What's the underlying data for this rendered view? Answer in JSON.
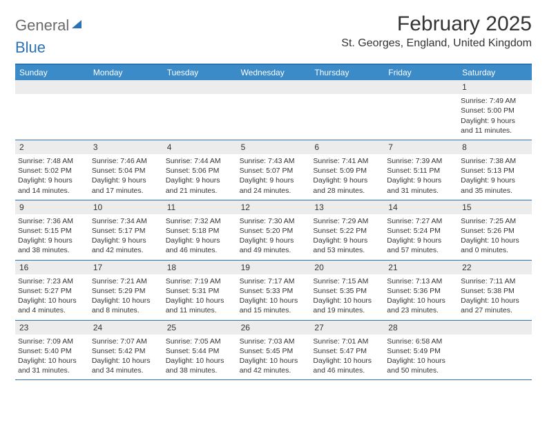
{
  "logo": {
    "word1": "General",
    "word2": "Blue"
  },
  "title": "February 2025",
  "location": "St. Georges, England, United Kingdom",
  "colors": {
    "header_bg": "#3b8bc9",
    "border": "#2a72b5",
    "numrow_bg": "#ececec",
    "text": "#333333",
    "logo_gray": "#6a6a6a"
  },
  "daynames": [
    "Sunday",
    "Monday",
    "Tuesday",
    "Wednesday",
    "Thursday",
    "Friday",
    "Saturday"
  ],
  "weeks": [
    [
      {
        "n": "",
        "sunrise": "",
        "sunset": "",
        "daylight1": "",
        "daylight2": ""
      },
      {
        "n": "",
        "sunrise": "",
        "sunset": "",
        "daylight1": "",
        "daylight2": ""
      },
      {
        "n": "",
        "sunrise": "",
        "sunset": "",
        "daylight1": "",
        "daylight2": ""
      },
      {
        "n": "",
        "sunrise": "",
        "sunset": "",
        "daylight1": "",
        "daylight2": ""
      },
      {
        "n": "",
        "sunrise": "",
        "sunset": "",
        "daylight1": "",
        "daylight2": ""
      },
      {
        "n": "",
        "sunrise": "",
        "sunset": "",
        "daylight1": "",
        "daylight2": ""
      },
      {
        "n": "1",
        "sunrise": "Sunrise: 7:49 AM",
        "sunset": "Sunset: 5:00 PM",
        "daylight1": "Daylight: 9 hours",
        "daylight2": "and 11 minutes."
      }
    ],
    [
      {
        "n": "2",
        "sunrise": "Sunrise: 7:48 AM",
        "sunset": "Sunset: 5:02 PM",
        "daylight1": "Daylight: 9 hours",
        "daylight2": "and 14 minutes."
      },
      {
        "n": "3",
        "sunrise": "Sunrise: 7:46 AM",
        "sunset": "Sunset: 5:04 PM",
        "daylight1": "Daylight: 9 hours",
        "daylight2": "and 17 minutes."
      },
      {
        "n": "4",
        "sunrise": "Sunrise: 7:44 AM",
        "sunset": "Sunset: 5:06 PM",
        "daylight1": "Daylight: 9 hours",
        "daylight2": "and 21 minutes."
      },
      {
        "n": "5",
        "sunrise": "Sunrise: 7:43 AM",
        "sunset": "Sunset: 5:07 PM",
        "daylight1": "Daylight: 9 hours",
        "daylight2": "and 24 minutes."
      },
      {
        "n": "6",
        "sunrise": "Sunrise: 7:41 AM",
        "sunset": "Sunset: 5:09 PM",
        "daylight1": "Daylight: 9 hours",
        "daylight2": "and 28 minutes."
      },
      {
        "n": "7",
        "sunrise": "Sunrise: 7:39 AM",
        "sunset": "Sunset: 5:11 PM",
        "daylight1": "Daylight: 9 hours",
        "daylight2": "and 31 minutes."
      },
      {
        "n": "8",
        "sunrise": "Sunrise: 7:38 AM",
        "sunset": "Sunset: 5:13 PM",
        "daylight1": "Daylight: 9 hours",
        "daylight2": "and 35 minutes."
      }
    ],
    [
      {
        "n": "9",
        "sunrise": "Sunrise: 7:36 AM",
        "sunset": "Sunset: 5:15 PM",
        "daylight1": "Daylight: 9 hours",
        "daylight2": "and 38 minutes."
      },
      {
        "n": "10",
        "sunrise": "Sunrise: 7:34 AM",
        "sunset": "Sunset: 5:17 PM",
        "daylight1": "Daylight: 9 hours",
        "daylight2": "and 42 minutes."
      },
      {
        "n": "11",
        "sunrise": "Sunrise: 7:32 AM",
        "sunset": "Sunset: 5:18 PM",
        "daylight1": "Daylight: 9 hours",
        "daylight2": "and 46 minutes."
      },
      {
        "n": "12",
        "sunrise": "Sunrise: 7:30 AM",
        "sunset": "Sunset: 5:20 PM",
        "daylight1": "Daylight: 9 hours",
        "daylight2": "and 49 minutes."
      },
      {
        "n": "13",
        "sunrise": "Sunrise: 7:29 AM",
        "sunset": "Sunset: 5:22 PM",
        "daylight1": "Daylight: 9 hours",
        "daylight2": "and 53 minutes."
      },
      {
        "n": "14",
        "sunrise": "Sunrise: 7:27 AM",
        "sunset": "Sunset: 5:24 PM",
        "daylight1": "Daylight: 9 hours",
        "daylight2": "and 57 minutes."
      },
      {
        "n": "15",
        "sunrise": "Sunrise: 7:25 AM",
        "sunset": "Sunset: 5:26 PM",
        "daylight1": "Daylight: 10 hours",
        "daylight2": "and 0 minutes."
      }
    ],
    [
      {
        "n": "16",
        "sunrise": "Sunrise: 7:23 AM",
        "sunset": "Sunset: 5:27 PM",
        "daylight1": "Daylight: 10 hours",
        "daylight2": "and 4 minutes."
      },
      {
        "n": "17",
        "sunrise": "Sunrise: 7:21 AM",
        "sunset": "Sunset: 5:29 PM",
        "daylight1": "Daylight: 10 hours",
        "daylight2": "and 8 minutes."
      },
      {
        "n": "18",
        "sunrise": "Sunrise: 7:19 AM",
        "sunset": "Sunset: 5:31 PM",
        "daylight1": "Daylight: 10 hours",
        "daylight2": "and 11 minutes."
      },
      {
        "n": "19",
        "sunrise": "Sunrise: 7:17 AM",
        "sunset": "Sunset: 5:33 PM",
        "daylight1": "Daylight: 10 hours",
        "daylight2": "and 15 minutes."
      },
      {
        "n": "20",
        "sunrise": "Sunrise: 7:15 AM",
        "sunset": "Sunset: 5:35 PM",
        "daylight1": "Daylight: 10 hours",
        "daylight2": "and 19 minutes."
      },
      {
        "n": "21",
        "sunrise": "Sunrise: 7:13 AM",
        "sunset": "Sunset: 5:36 PM",
        "daylight1": "Daylight: 10 hours",
        "daylight2": "and 23 minutes."
      },
      {
        "n": "22",
        "sunrise": "Sunrise: 7:11 AM",
        "sunset": "Sunset: 5:38 PM",
        "daylight1": "Daylight: 10 hours",
        "daylight2": "and 27 minutes."
      }
    ],
    [
      {
        "n": "23",
        "sunrise": "Sunrise: 7:09 AM",
        "sunset": "Sunset: 5:40 PM",
        "daylight1": "Daylight: 10 hours",
        "daylight2": "and 31 minutes."
      },
      {
        "n": "24",
        "sunrise": "Sunrise: 7:07 AM",
        "sunset": "Sunset: 5:42 PM",
        "daylight1": "Daylight: 10 hours",
        "daylight2": "and 34 minutes."
      },
      {
        "n": "25",
        "sunrise": "Sunrise: 7:05 AM",
        "sunset": "Sunset: 5:44 PM",
        "daylight1": "Daylight: 10 hours",
        "daylight2": "and 38 minutes."
      },
      {
        "n": "26",
        "sunrise": "Sunrise: 7:03 AM",
        "sunset": "Sunset: 5:45 PM",
        "daylight1": "Daylight: 10 hours",
        "daylight2": "and 42 minutes."
      },
      {
        "n": "27",
        "sunrise": "Sunrise: 7:01 AM",
        "sunset": "Sunset: 5:47 PM",
        "daylight1": "Daylight: 10 hours",
        "daylight2": "and 46 minutes."
      },
      {
        "n": "28",
        "sunrise": "Sunrise: 6:58 AM",
        "sunset": "Sunset: 5:49 PM",
        "daylight1": "Daylight: 10 hours",
        "daylight2": "and 50 minutes."
      },
      {
        "n": "",
        "sunrise": "",
        "sunset": "",
        "daylight1": "",
        "daylight2": ""
      }
    ]
  ]
}
